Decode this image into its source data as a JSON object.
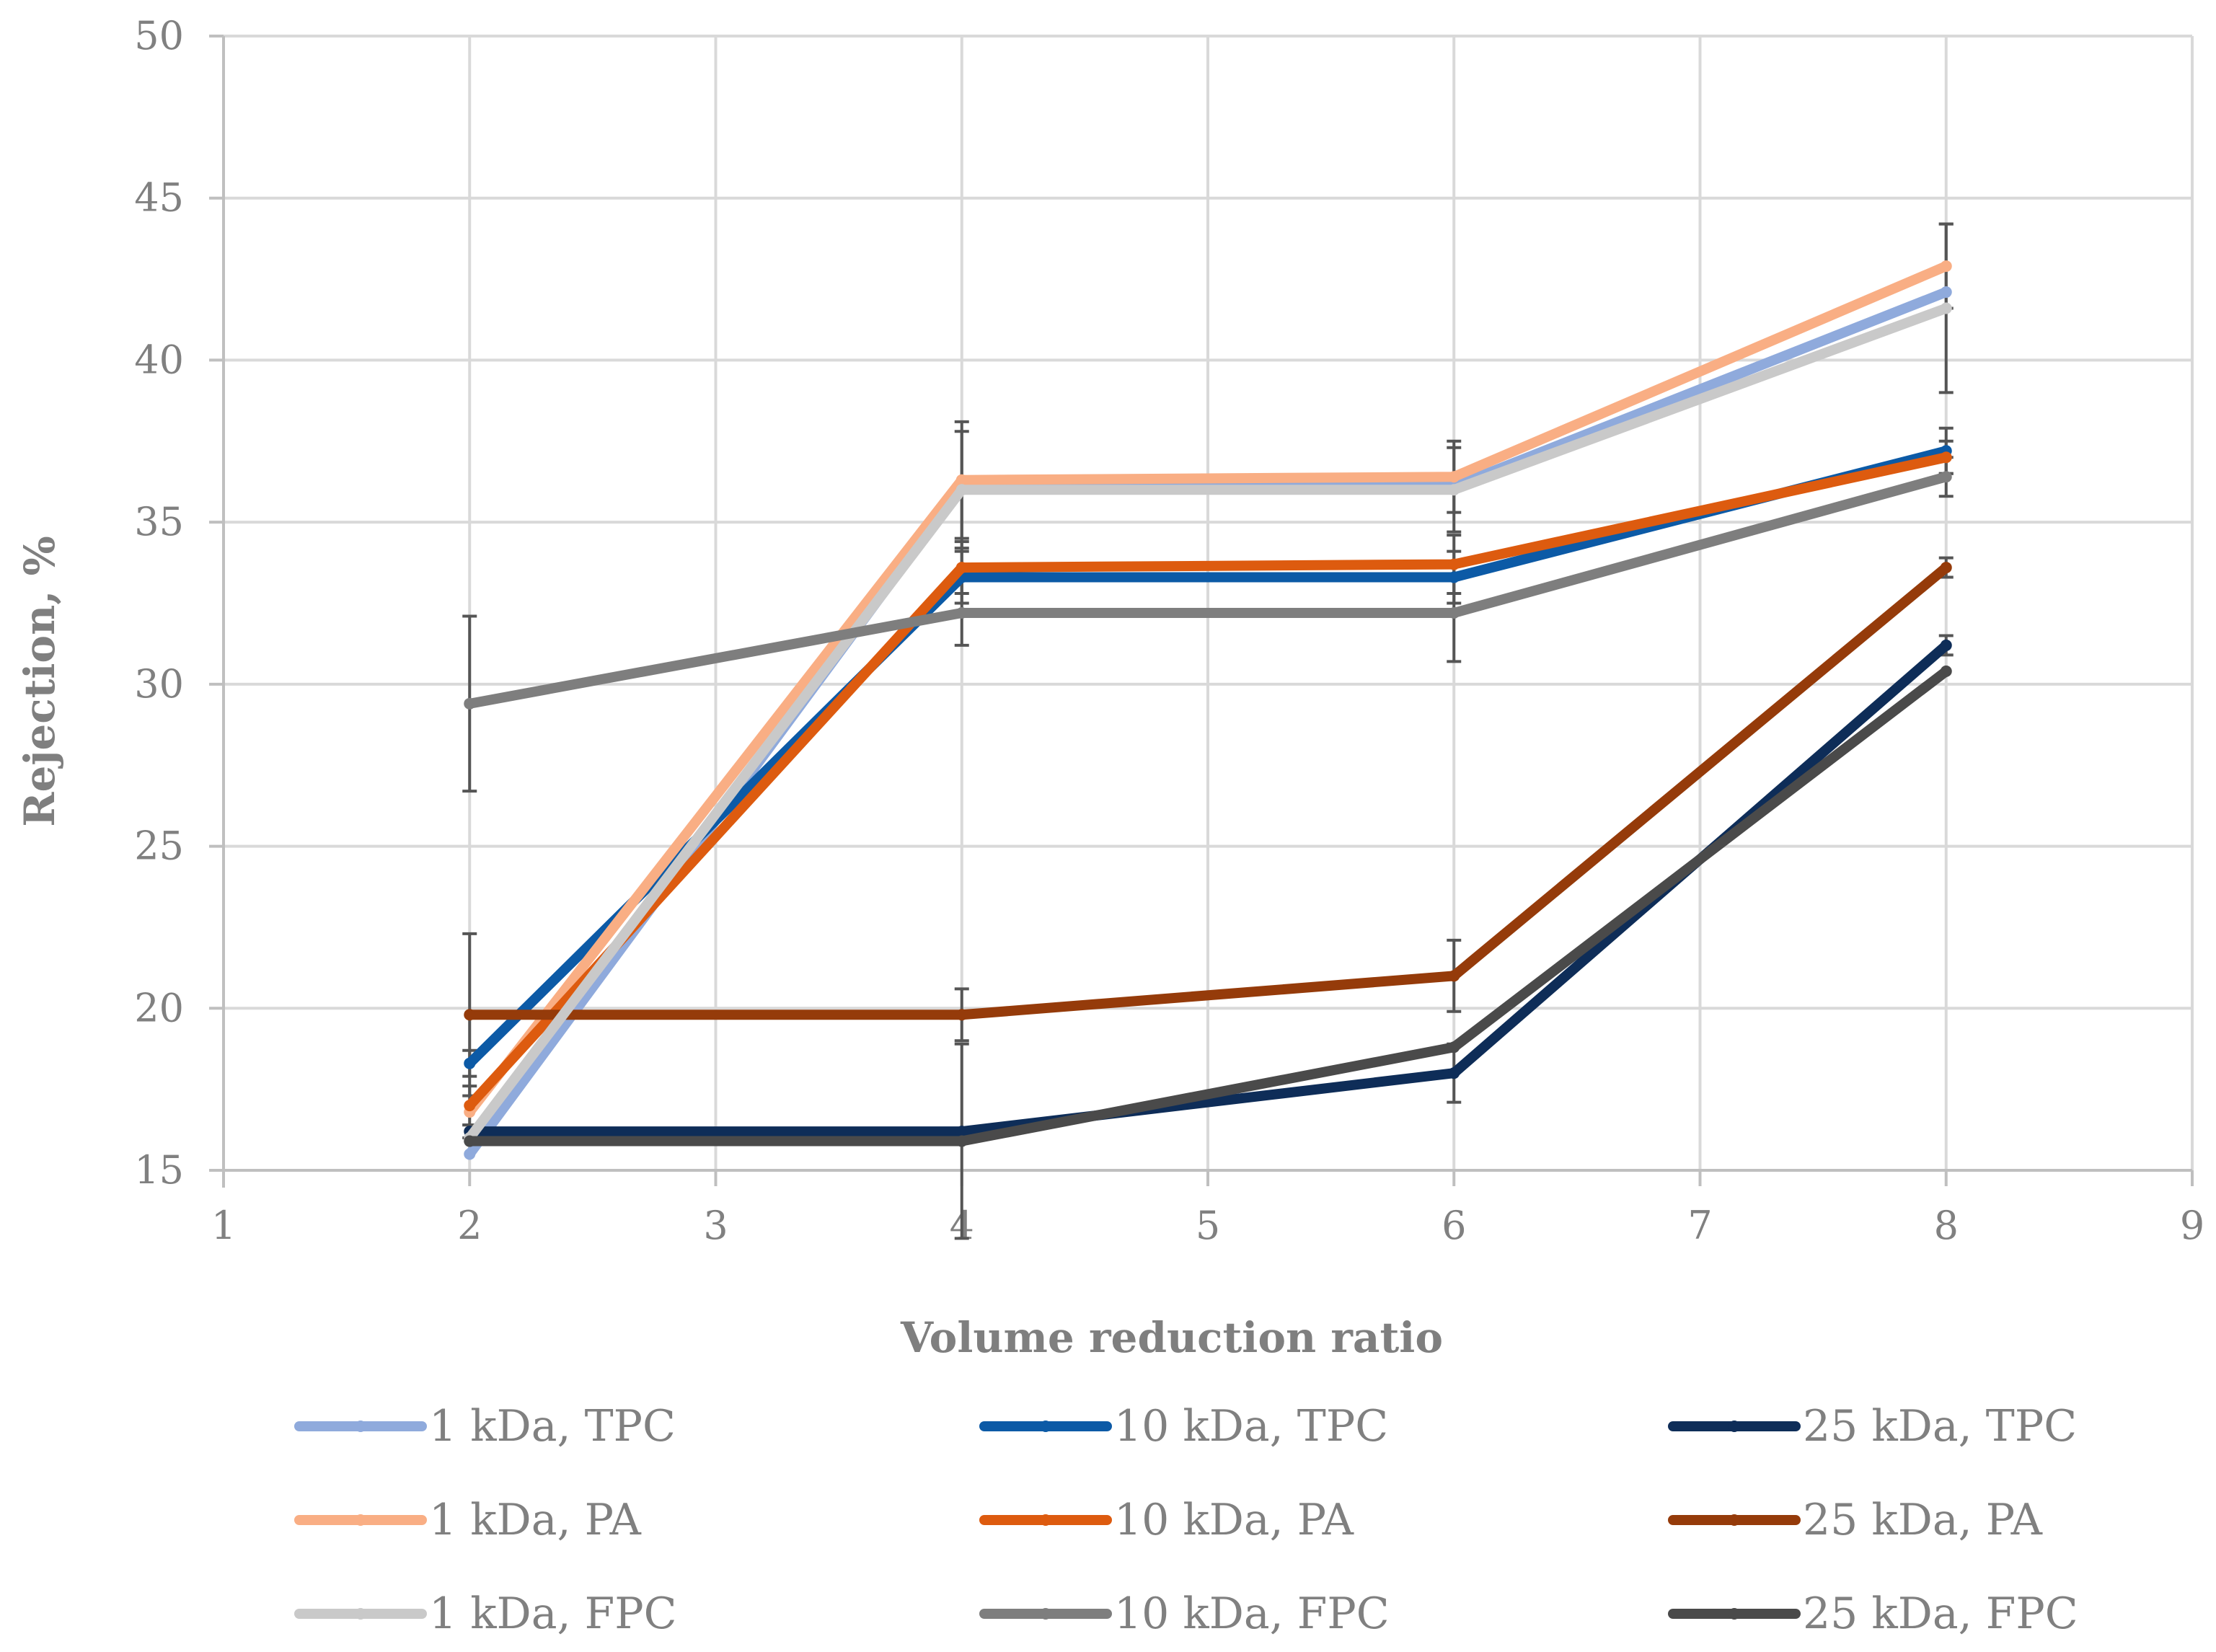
{
  "chart_data": {
    "type": "line",
    "title": "",
    "xlabel": "Volume reduction ratio",
    "ylabel": "Rejection, %",
    "xlim": [
      1,
      9
    ],
    "ylim": [
      15,
      50
    ],
    "xticks": [
      1,
      2,
      3,
      4,
      5,
      6,
      7,
      8,
      9
    ],
    "yticks": [
      15,
      20,
      25,
      30,
      35,
      40,
      45,
      50
    ],
    "grid": true,
    "legend_position": "bottom",
    "x": [
      2,
      4,
      6,
      8
    ],
    "series": [
      {
        "name": "1 kDa, TPC",
        "color": "#8faadc",
        "values": [
          15.5,
          36.1,
          36.1,
          42.1
        ],
        "errors": [
          0,
          0,
          0,
          0
        ]
      },
      {
        "name": "10 kDa, TPC",
        "color": "#0c5aa6",
        "values": [
          18.3,
          33.3,
          33.3,
          37.2
        ],
        "errors": [
          0.4,
          0.8,
          0.8,
          0.7
        ]
      },
      {
        "name": "25 kDa, TPC",
        "color": "#0e2d58",
        "values": [
          16.2,
          16.2,
          18.0,
          31.2
        ],
        "errors": [
          0.2,
          0,
          0.9,
          0.3
        ]
      },
      {
        "name": "1 kDa, PA",
        "color": "#f9ae84",
        "values": [
          16.8,
          36.3,
          36.4,
          42.9
        ],
        "errors": [
          0,
          1.8,
          1.1,
          1.3
        ]
      },
      {
        "name": "10 kDa, PA",
        "color": "#dd5b0f",
        "values": [
          17.0,
          33.6,
          33.7,
          37.0
        ],
        "errors": [
          0.6,
          0.8,
          0.9,
          0.5
        ]
      },
      {
        "name": "25 kDa, PA",
        "color": "#953b0a",
        "values": [
          19.8,
          19.8,
          21.0,
          33.6
        ],
        "errors": [
          2.5,
          0.8,
          1.1,
          0.3
        ]
      },
      {
        "name": "1 kDa, FPC",
        "color": "#c9c9c9",
        "values": [
          16.0,
          36.0,
          36.0,
          41.6
        ],
        "errors": [
          0,
          1.8,
          1.3,
          2.6
        ]
      },
      {
        "name": "10 kDa, FPC",
        "color": "#7e7e7e",
        "values": [
          29.4,
          32.2,
          32.2,
          36.4
        ],
        "errors": [
          2.7,
          1.0,
          1.5,
          0.6
        ]
      },
      {
        "name": "25 kDa, FPC",
        "color": "#4a4a4a",
        "values": [
          15.9,
          15.9,
          18.8,
          30.4
        ],
        "errors": [
          0,
          3.0,
          0,
          0
        ]
      }
    ]
  }
}
